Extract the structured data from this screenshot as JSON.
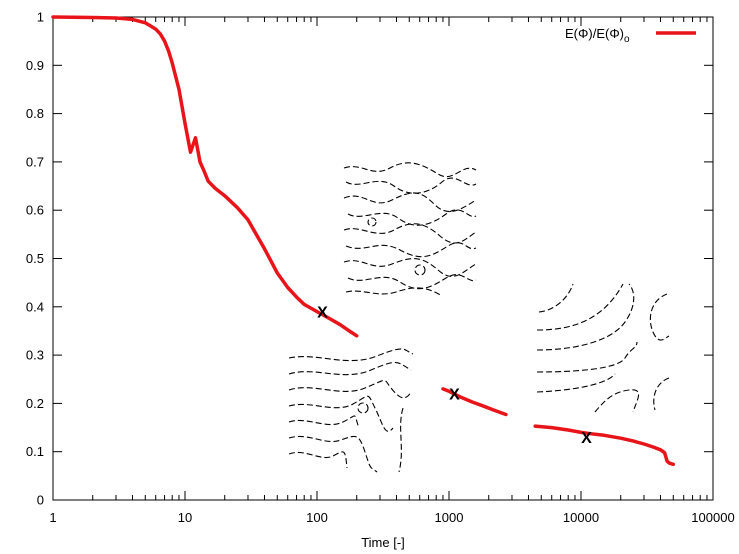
{
  "chart_data": {
    "type": "line",
    "title": "",
    "xlabel": "Time [-]",
    "ylabel": "",
    "xscale": "log",
    "xlim": [
      1,
      100000
    ],
    "ylim": [
      0,
      1
    ],
    "x_ticks": [
      "1",
      "10",
      "100",
      "1000",
      "10000",
      "100000"
    ],
    "y_ticks": [
      "0",
      "0.1",
      "0.2",
      "0.3",
      "0.4",
      "0.5",
      "0.6",
      "0.7",
      "0.8",
      "0.9",
      "1"
    ],
    "grid": false,
    "legend": {
      "placement": "top-right",
      "label_main": "E(Φ)/E(Φ)",
      "label_sub": "o"
    },
    "line_color": "#e8141a",
    "series": [
      {
        "name": "E(Φ)/E(Φ)o",
        "segments": [
          {
            "x": [
              1,
              2,
              3,
              4,
              5,
              6,
              6.5,
              7,
              7.5,
              8,
              9,
              10,
              11,
              12,
              13,
              14,
              15,
              17,
              20,
              25,
              30,
              40,
              50,
              60,
              70,
              80,
              100
            ],
            "y": [
              1.0,
              0.999,
              0.998,
              0.995,
              0.988,
              0.975,
              0.965,
              0.95,
              0.93,
              0.905,
              0.85,
              0.78,
              0.72,
              0.75,
              0.7,
              0.68,
              0.66,
              0.645,
              0.63,
              0.605,
              0.58,
              0.52,
              0.47,
              0.44,
              0.42,
              0.405,
              0.39
            ]
          },
          {
            "x": [
              100,
              120,
              150,
              180,
              200
            ],
            "y": [
              0.39,
              0.378,
              0.363,
              0.348,
              0.34
            ]
          },
          {
            "x": [
              900,
              1000,
              1200,
              1500,
              1800,
              2200,
              2700
            ],
            "y": [
              0.23,
              0.225,
              0.214,
              0.203,
              0.195,
              0.186,
              0.177
            ]
          },
          {
            "x": [
              4500,
              6000,
              8000,
              10000,
              12000,
              15000,
              20000,
              25000,
              30000,
              35000,
              40000,
              43000,
              45000,
              47000,
              50000
            ],
            "y": [
              0.153,
              0.15,
              0.145,
              0.14,
              0.137,
              0.134,
              0.128,
              0.122,
              0.116,
              0.11,
              0.104,
              0.098,
              0.08,
              0.076,
              0.074
            ]
          }
        ]
      }
    ],
    "markers": [
      {
        "label": "X",
        "x": 110,
        "y": 0.39
      },
      {
        "label": "X",
        "x": 1100,
        "y": 0.22
      },
      {
        "label": "X",
        "x": 11000,
        "y": 0.13
      }
    ]
  }
}
